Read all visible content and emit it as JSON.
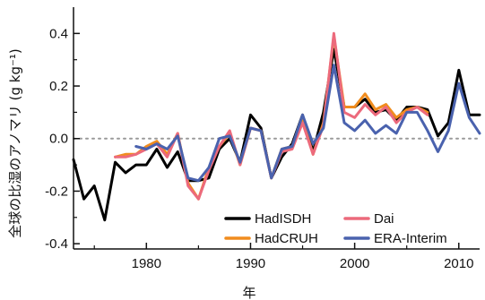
{
  "chart_data": {
    "type": "line",
    "xlabel": "年",
    "ylabel": "全球の比湿のアノマリ (g kg⁻¹)",
    "xlim": [
      1973,
      2012
    ],
    "ylim": [
      -0.42,
      0.5
    ],
    "x_ticks": [
      1980,
      1990,
      2000,
      2010
    ],
    "y_ticks": [
      -0.4,
      -0.2,
      0.0,
      0.2,
      0.4
    ],
    "x_tick_labels": [
      "1980",
      "1990",
      "2000",
      "2010"
    ],
    "y_tick_labels": [
      "-0.4",
      "-0.2",
      "0.0",
      "0.2",
      "0.4"
    ],
    "zero_line": "dotted",
    "legend_position": "bottom-right",
    "series": [
      {
        "name": "HadISDH",
        "color": "#000000",
        "x": [
          1973,
          1974,
          1975,
          1976,
          1977,
          1978,
          1979,
          1980,
          1981,
          1982,
          1983,
          1984,
          1985,
          1986,
          1987,
          1988,
          1989,
          1990,
          1991,
          1992,
          1993,
          1994,
          1995,
          1996,
          1997,
          1998,
          1999,
          2000,
          2001,
          2002,
          2003,
          2004,
          2005,
          2006,
          2007,
          2008,
          2009,
          2010,
          2011,
          2012
        ],
        "y": [
          -0.08,
          -0.23,
          -0.18,
          -0.31,
          -0.09,
          -0.13,
          -0.1,
          -0.1,
          -0.04,
          -0.11,
          -0.05,
          -0.16,
          -0.16,
          -0.15,
          -0.04,
          0.0,
          -0.09,
          0.09,
          0.04,
          -0.15,
          -0.07,
          -0.02,
          0.09,
          -0.05,
          0.1,
          0.34,
          0.12,
          0.12,
          0.15,
          0.1,
          0.11,
          0.07,
          0.12,
          0.12,
          0.11,
          0.01,
          0.06,
          0.26,
          0.09,
          0.09
        ]
      },
      {
        "name": "HadCRUH",
        "color": "#f08c1e",
        "x": [
          1977,
          1978,
          1979,
          1980,
          1981,
          1982,
          1983,
          1984,
          1985,
          1986,
          1987,
          1988,
          1989,
          1990,
          1991,
          1992,
          1993,
          1994,
          1995,
          1996,
          1997,
          1998,
          1999,
          2000,
          2001,
          2002,
          2003,
          2004,
          2005,
          2006,
          2007
        ],
        "y": [
          -0.07,
          -0.06,
          -0.06,
          -0.03,
          -0.01,
          -0.06,
          0.02,
          -0.17,
          -0.23,
          -0.11,
          -0.03,
          0.02,
          -0.1,
          0.04,
          0.03,
          -0.15,
          -0.04,
          -0.03,
          0.07,
          -0.06,
          0.06,
          0.39,
          0.12,
          0.12,
          0.17,
          0.11,
          0.13,
          0.08,
          0.11,
          0.12,
          0.1
        ]
      },
      {
        "name": "Dai",
        "color": "#ec6a7c",
        "x": [
          1977,
          1978,
          1979,
          1980,
          1981,
          1982,
          1983,
          1984,
          1985,
          1986,
          1987,
          1988,
          1989,
          1990,
          1991,
          1992,
          1993,
          1994,
          1995,
          1996,
          1997,
          1998,
          1999,
          2000,
          2001,
          2002,
          2003,
          2004,
          2005,
          2006,
          2007
        ],
        "y": [
          -0.07,
          -0.07,
          -0.06,
          -0.04,
          -0.02,
          -0.07,
          0.02,
          -0.18,
          -0.23,
          -0.12,
          -0.03,
          0.03,
          -0.1,
          0.04,
          0.03,
          -0.15,
          -0.05,
          -0.04,
          0.06,
          -0.06,
          0.05,
          0.4,
          0.1,
          0.08,
          0.13,
          0.09,
          0.12,
          0.06,
          0.1,
          0.12,
          0.09
        ]
      },
      {
        "name": "ERA-Interim",
        "color": "#4a62ae",
        "x": [
          1979,
          1980,
          1981,
          1982,
          1983,
          1984,
          1985,
          1986,
          1987,
          1988,
          1989,
          1990,
          1991,
          1992,
          1993,
          1994,
          1995,
          1996,
          1997,
          1998,
          1999,
          2000,
          2001,
          2002,
          2003,
          2004,
          2005,
          2006,
          2007,
          2008,
          2009,
          2010,
          2011,
          2012
        ],
        "y": [
          -0.03,
          -0.04,
          -0.02,
          -0.04,
          0.01,
          -0.15,
          -0.16,
          -0.11,
          0.0,
          0.01,
          -0.09,
          0.04,
          0.03,
          -0.15,
          -0.04,
          -0.03,
          0.09,
          -0.02,
          0.04,
          0.28,
          0.06,
          0.03,
          0.07,
          0.02,
          0.05,
          0.02,
          0.1,
          0.1,
          0.03,
          -0.05,
          0.03,
          0.21,
          0.08,
          0.02
        ]
      }
    ]
  }
}
